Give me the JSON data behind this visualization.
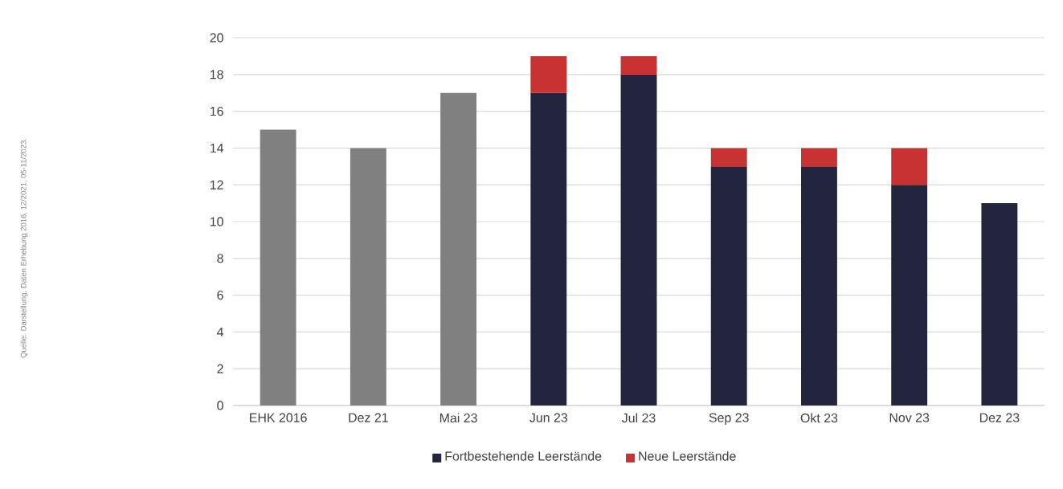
{
  "chart_data": {
    "type": "bar",
    "stacked": true,
    "categories": [
      "EHK 2016",
      "Dez 21",
      "Mai 23",
      "Jun 23",
      "Jul 23",
      "Sep 23",
      "Okt 23",
      "Nov 23",
      "Dez 23"
    ],
    "series": [
      {
        "color": "#808080",
        "values": [
          15,
          14,
          17,
          null,
          null,
          null,
          null,
          null,
          null
        ]
      },
      {
        "name": "Fortbestehende Leerstände",
        "color": "#22253d",
        "values": [
          null,
          null,
          null,
          17,
          18,
          13,
          13,
          12,
          11
        ]
      },
      {
        "name": "Neue Leerstände",
        "color": "#c83232",
        "values": [
          null,
          null,
          null,
          2,
          1,
          1,
          1,
          2,
          null
        ]
      }
    ],
    "ylim": [
      0,
      20
    ],
    "yticks": [
      0,
      2,
      4,
      6,
      8,
      10,
      12,
      14,
      16,
      18,
      20
    ],
    "grid": "y",
    "legend": "bottom",
    "annotations": [
      "Quelle:  Darstellung, Daten Erhebung 2016, 12/2021, 05-11/2023."
    ]
  }
}
